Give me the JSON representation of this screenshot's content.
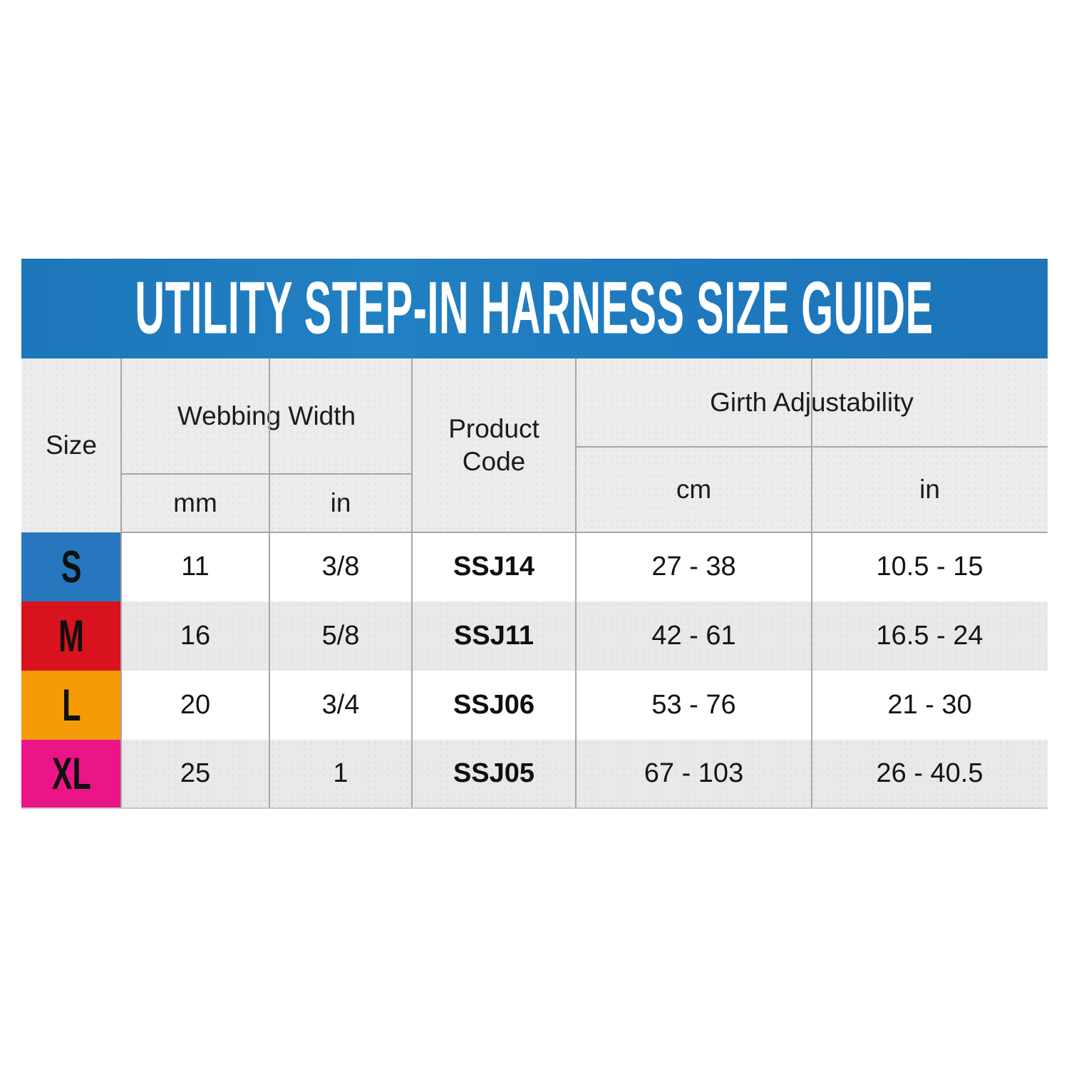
{
  "title": "UTILITY STEP-IN HARNESS SIZE GUIDE",
  "colors": {
    "banner_blue": "#1e78bd",
    "size_s_blue": "#2677bd",
    "size_m_red": "#d8131d",
    "size_l_orange": "#f59b07",
    "size_xl_pink": "#ec1588",
    "header_gray": "#ececec",
    "alt_row_gray": "#e9e9e9",
    "grid_line": "#a6a6a6"
  },
  "table": {
    "headers": {
      "size": "Size",
      "webbing_width": "Webbing Width",
      "product_code_line1": "Product",
      "product_code_line2": "Code",
      "girth_adjustability": "Girth Adjustability",
      "mm": "mm",
      "in": "in",
      "cm": "cm",
      "in2": "in"
    },
    "rows": [
      {
        "size": "S",
        "color": "#2677bd",
        "mm": "11",
        "in": "3/8",
        "code": "SSJ14",
        "girth_cm": "27 - 38",
        "girth_in": "10.5 - 15"
      },
      {
        "size": "M",
        "color": "#d8131d",
        "mm": "16",
        "in": "5/8",
        "code": "SSJ11",
        "girth_cm": "42 - 61",
        "girth_in": "16.5 - 24"
      },
      {
        "size": "L",
        "color": "#f59b07",
        "mm": "20",
        "in": "3/4",
        "code": "SSJ06",
        "girth_cm": "53 - 76",
        "girth_in": "21 - 30"
      },
      {
        "size": "XL",
        "color": "#ec1588",
        "mm": "25",
        "in": "1",
        "code": "SSJ05",
        "girth_cm": "67 - 103",
        "girth_in": "26 - 40.5"
      }
    ]
  },
  "chart_data": {
    "type": "table",
    "title": "UTILITY STEP-IN HARNESS SIZE GUIDE",
    "columns": [
      "Size",
      "Webbing Width (mm)",
      "Webbing Width (in)",
      "Product Code",
      "Girth Adjustability (cm)",
      "Girth Adjustability (in)"
    ],
    "rows": [
      [
        "S",
        11,
        "3/8",
        "SSJ14",
        "27 - 38",
        "10.5 - 15"
      ],
      [
        "M",
        16,
        "5/8",
        "SSJ11",
        "42 - 61",
        "16.5 - 24"
      ],
      [
        "L",
        20,
        "3/4",
        "SSJ06",
        "53 - 76",
        "21 - 30"
      ],
      [
        "XL",
        25,
        "1",
        "SSJ05",
        "67 - 103",
        "26 - 40.5"
      ]
    ]
  }
}
